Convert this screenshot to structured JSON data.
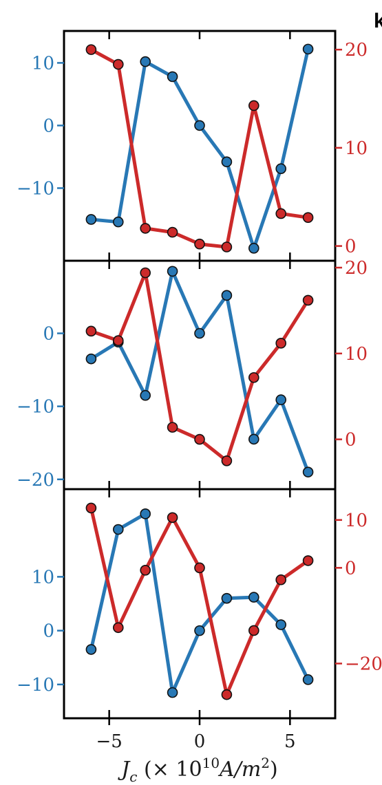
{
  "corner_label": "k",
  "xlabel": {
    "main": "J",
    "sub": "c",
    "pre": " (× 10",
    "exp": "10",
    "mid": "A/m",
    "sup2": "2",
    "post": ")"
  },
  "xlim": [
    -7.5,
    7.5
  ],
  "xticks": [
    -5,
    0,
    5
  ],
  "colors": {
    "left": "#2878b5",
    "right": "#cc2a2a",
    "frame": "#000000"
  },
  "chart_data": [
    {
      "type": "line",
      "x": [
        -6,
        -4.5,
        -3,
        -1.5,
        0,
        1.5,
        3,
        4.5,
        6
      ],
      "left_axis": {
        "ylim": [
          -20.5,
          14
        ],
        "ticks": [
          -10,
          0,
          10
        ],
        "values": [
          -15,
          -15.4,
          10.2,
          7.8,
          0,
          -5.8,
          -19.6,
          -6.9,
          12.2
        ]
      },
      "right_axis": {
        "ylim": [
          -0.8,
          21.2
        ],
        "ticks": [
          0,
          10,
          20
        ],
        "values": [
          20,
          18.5,
          1.8,
          1.4,
          0.2,
          -0.1,
          14.3,
          3.3,
          2.9
        ]
      }
    },
    {
      "type": "line",
      "x": [
        -6,
        -4.5,
        -3,
        -1.5,
        0,
        1.5,
        3,
        4.5,
        6
      ],
      "left_axis": {
        "ylim": [
          -20.4,
          9
        ],
        "ticks": [
          -20,
          -10,
          0
        ],
        "values": [
          -3.5,
          -1.2,
          -8.5,
          8.5,
          0,
          5.2,
          -14.5,
          -9.1,
          -19
        ]
      },
      "right_axis": {
        "ylim": [
          -5,
          20
        ],
        "ticks": [
          0,
          10,
          20
        ],
        "values": [
          12.6,
          11.5,
          19.4,
          1.4,
          0,
          -2.5,
          7.2,
          11.2,
          16.2
        ]
      }
    },
    {
      "type": "line",
      "x": [
        -6,
        -4.5,
        -3,
        -1.5,
        0,
        1.5,
        3,
        4.5,
        6
      ],
      "left_axis": {
        "ylim": [
          -15,
          25
        ],
        "ticks": [
          -10,
          0,
          10
        ],
        "values": [
          -3.5,
          18.8,
          21.7,
          -11.5,
          0,
          6.0,
          6.2,
          1.1,
          -9.1
        ]
      },
      "right_axis": {
        "ylim": [
          -30,
          15
        ],
        "ticks": [
          -20,
          0,
          10
        ],
        "values": [
          12.5,
          -12.5,
          -0.5,
          10.5,
          0,
          -26.5,
          -13.1,
          -2.5,
          1.5
        ]
      }
    }
  ]
}
